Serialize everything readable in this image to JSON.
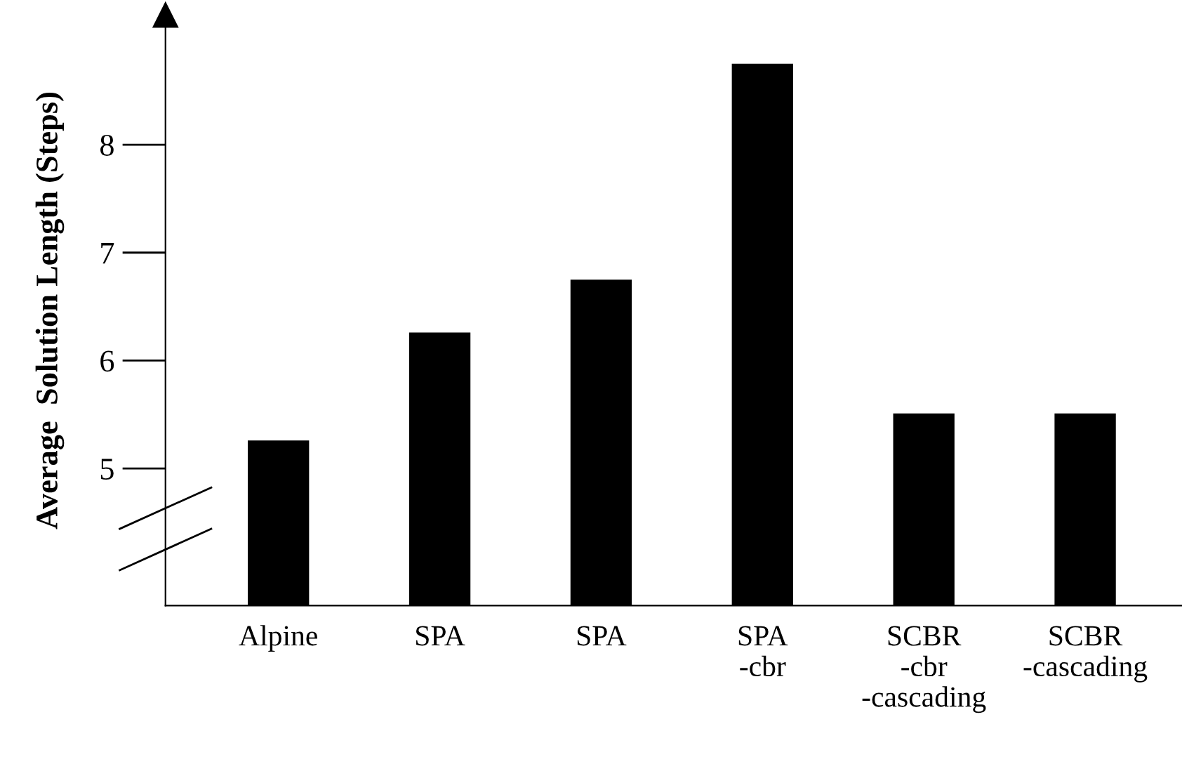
{
  "chart_data": {
    "type": "bar",
    "ylabel": "Average  Solution Length (Steps)",
    "categories": [
      "Alpine",
      "SPA",
      "SPA",
      "SPA\n-cbr",
      "SCBR\n-cbr\n-cascading",
      "SCBR\n-cascading"
    ],
    "values": [
      5.26,
      6.26,
      6.75,
      8.75,
      5.51,
      5.51
    ],
    "color": "#000000",
    "ylim": [
      3.73,
      9.2
    ],
    "yticks": [
      5,
      6,
      7,
      8
    ],
    "grid": false
  }
}
